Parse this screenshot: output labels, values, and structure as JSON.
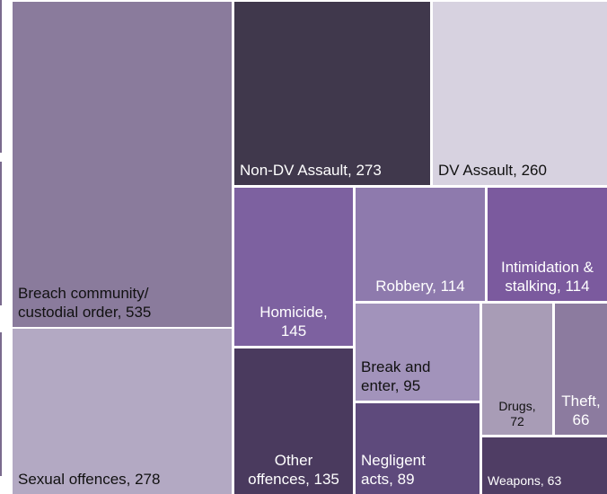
{
  "chart_data": {
    "type": "treemap",
    "items": [
      {
        "label": "Breach community/\ncustodial order, 535",
        "name": "Breach community/ custodial order",
        "value": 535,
        "color": "#8a7b9c",
        "text_color": "#111111",
        "align": "left"
      },
      {
        "label": "Sexual offences, 278",
        "name": "Sexual offences",
        "value": 278,
        "color": "#b3a9c3",
        "text_color": "#111111",
        "align": "left"
      },
      {
        "label": "Non-DV Assault, 273",
        "name": "Non-DV Assault",
        "value": 273,
        "color": "#40384c",
        "text_color": "#ffffff",
        "align": "left"
      },
      {
        "label": "DV Assault, 260",
        "name": "DV Assault",
        "value": 260,
        "color": "#d7d2e0",
        "text_color": "#111111",
        "align": "left"
      },
      {
        "label": "Homicide,\n145",
        "name": "Homicide",
        "value": 145,
        "color": "#7d61a0",
        "text_color": "#ffffff",
        "align": "center"
      },
      {
        "label": "Other\noffences, 135",
        "name": "Other offences",
        "value": 135,
        "color": "#4a3a5e",
        "text_color": "#ffffff",
        "align": "center"
      },
      {
        "label": "Robbery, 114",
        "name": "Robbery",
        "value": 114,
        "color": "#8e7aad",
        "text_color": "#ffffff",
        "align": "center"
      },
      {
        "label": "Intimidation &\nstalking, 114",
        "name": "Intimidation & stalking",
        "value": 114,
        "color": "#7b5a9e",
        "text_color": "#ffffff",
        "align": "center"
      },
      {
        "label": "Break and\nenter, 95",
        "name": "Break and enter",
        "value": 95,
        "color": "#a293bb",
        "text_color": "#111111",
        "align": "left"
      },
      {
        "label": "Negligent\nacts, 89",
        "name": "Negligent acts",
        "value": 89,
        "color": "#5e4a7c",
        "text_color": "#ffffff",
        "align": "left"
      },
      {
        "label": "Drugs,\n72",
        "name": "Drugs",
        "value": 72,
        "color": "#a89cb6",
        "text_color": "#111111",
        "align": "center",
        "small": true
      },
      {
        "label": "Theft,\n66",
        "name": "Theft",
        "value": 66,
        "color": "#8c7b9f",
        "text_color": "#ffffff",
        "align": "center"
      },
      {
        "label": "Weapons, 63",
        "name": "Weapons",
        "value": 63,
        "color": "#4f3d64",
        "text_color": "#ffffff",
        "align": "left",
        "small": true
      }
    ]
  }
}
